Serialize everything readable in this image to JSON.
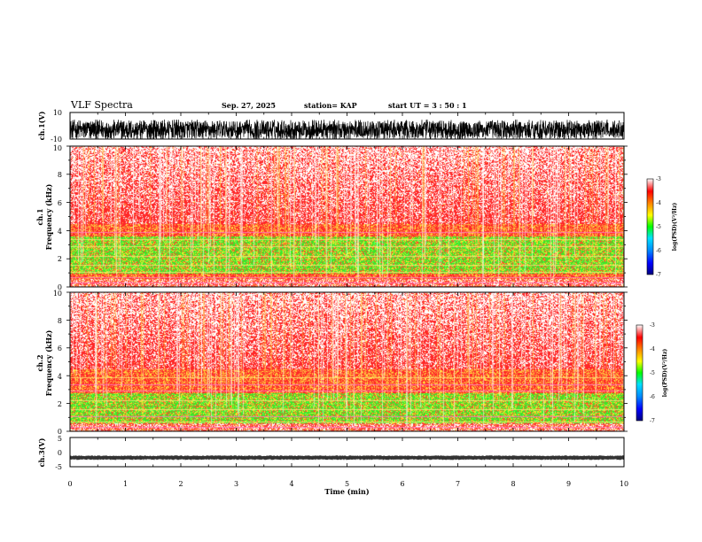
{
  "header": {
    "title": "VLF Spectra",
    "date": "Sep. 27, 2025",
    "station": "station= KAP",
    "start_ut": "start  UT =   3 : 50 : 1"
  },
  "chart_data": [
    {
      "type": "line",
      "panel": "ch1_waveform",
      "ylabel": "ch.1(V)",
      "ylim": [
        -10,
        10
      ],
      "yticks": [
        "10",
        "-10"
      ],
      "xlim": [
        0,
        10
      ]
    },
    {
      "type": "heatmap",
      "panel": "ch1_spectrogram",
      "ylabel": "ch.1\nFrequency  (kHz)",
      "ylabel_line1": "ch.1",
      "ylabel_line2": "Frequency  (kHz)",
      "ylim": [
        0,
        10
      ],
      "yticks": [
        "0",
        "2",
        "4",
        "6",
        "8",
        "10"
      ],
      "xlim": [
        0,
        10
      ],
      "colorbar": {
        "label": "log(PSD)(V²/Hz)",
        "range": [
          -7,
          -3
        ],
        "ticks": [
          "-3",
          "-4",
          "-5",
          "-6",
          "-7"
        ]
      }
    },
    {
      "type": "heatmap",
      "panel": "ch2_spectrogram",
      "ylabel_line1": "ch.2",
      "ylabel_line2": "Frequency  (kHz)",
      "ylim": [
        0,
        10
      ],
      "yticks": [
        "0",
        "2",
        "4",
        "6",
        "8",
        "10"
      ],
      "xlim": [
        0,
        10
      ],
      "colorbar": {
        "label": "log(PSD)(V²/Hz)",
        "range": [
          -7,
          -3
        ],
        "ticks": [
          "-3",
          "-4",
          "-5",
          "-6",
          "-7"
        ]
      }
    },
    {
      "type": "line",
      "panel": "ch3_waveform",
      "ylabel": "ch.3(V)",
      "ylim": [
        -5,
        5
      ],
      "yticks": [
        "5",
        "0",
        "-5"
      ],
      "xlim": [
        0,
        10
      ],
      "xlabel": "Time  (min)",
      "xticks": [
        "0",
        "1",
        "2",
        "3",
        "4",
        "5",
        "6",
        "7",
        "8",
        "9",
        "10"
      ]
    }
  ]
}
